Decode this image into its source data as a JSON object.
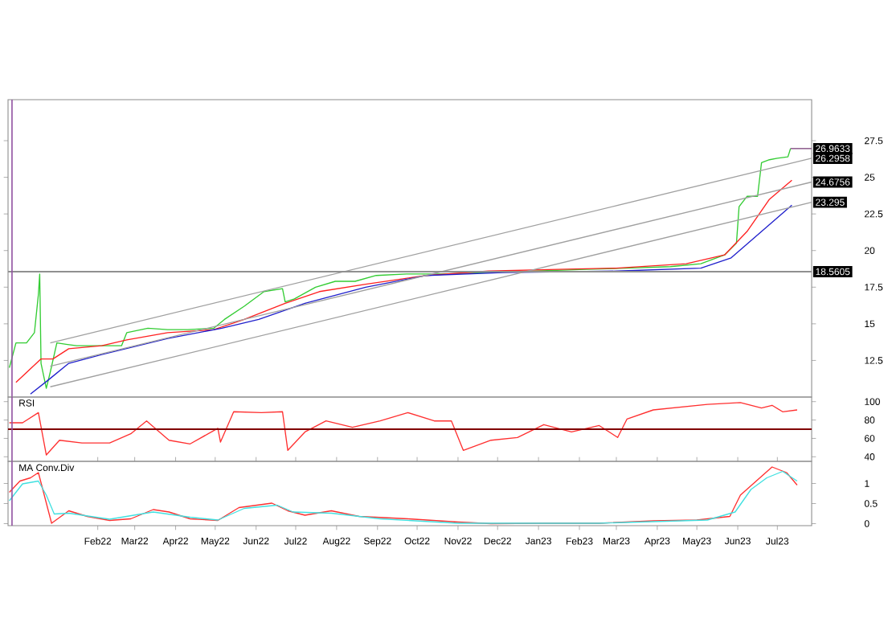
{
  "chart_data": [
    {
      "type": "line",
      "xlim": [
        "2021-11-25",
        "2023-07-27"
      ],
      "ylim": [
        10.0,
        30.3
      ],
      "yticks": [
        12.5,
        15,
        17.5,
        20,
        22.5,
        25,
        27.5
      ],
      "tick_labels": "y",
      "series": [
        {
          "color": "#33cc33",
          "x": [
            "2021-11-26",
            "2021-12-01",
            "2021-12-09",
            "2021-12-15",
            "2021-12-18",
            "2021-12-19",
            "2021-12-20",
            "2021-12-24",
            "2021-12-27",
            "2022-01-01",
            "2022-01-08",
            "2022-01-16",
            "2022-02-04",
            "2022-02-19",
            "2022-02-23",
            "2022-03-11",
            "2022-03-26",
            "2022-04-10",
            "2022-04-30",
            "2022-05-08",
            "2022-05-23",
            "2022-06-07",
            "2022-06-21",
            "2022-06-23",
            "2022-06-30",
            "2022-07-16",
            "2022-07-31",
            "2022-08-15",
            "2022-08-31",
            "2022-09-23",
            "2022-10-08",
            "2022-10-19",
            "2022-11-24",
            "2022-12-29",
            "2023-02-01",
            "2023-03-08",
            "2023-04-11",
            "2023-05-04",
            "2023-05-22",
            "2023-05-31",
            "2023-06-02",
            "2023-06-08",
            "2023-06-16",
            "2023-06-19",
            "2023-06-25",
            "2023-07-01",
            "2023-07-09",
            "2023-07-11"
          ],
          "values": [
            12.0,
            13.7,
            13.7,
            14.4,
            17.0,
            18.4,
            12.3,
            10.6,
            11.7,
            13.7,
            13.6,
            13.5,
            13.5,
            13.5,
            14.4,
            14.7,
            14.6,
            14.6,
            14.7,
            15.3,
            16.2,
            17.2,
            17.4,
            16.5,
            16.7,
            17.5,
            17.9,
            17.9,
            18.3,
            18.4,
            18.4,
            18.4,
            18.5,
            18.6,
            18.7,
            18.8,
            18.9,
            19.1,
            19.7,
            20.5,
            23.0,
            23.7,
            23.7,
            26.0,
            26.2,
            26.3,
            26.4,
            26.9633
          ]
        },
        {
          "color": "#ff2020",
          "x": [
            "2021-12-01",
            "2021-12-20",
            "2021-12-29",
            "2022-01-10",
            "2022-02-04",
            "2022-02-23",
            "2022-03-26",
            "2022-04-30",
            "2022-05-23",
            "2022-06-23",
            "2022-07-19",
            "2022-08-23",
            "2022-10-08",
            "2022-11-24",
            "2023-01-09",
            "2023-03-01",
            "2023-04-23",
            "2023-05-22",
            "2023-06-08",
            "2023-06-25",
            "2023-07-12"
          ],
          "values": [
            11.0,
            12.6,
            12.6,
            13.3,
            13.5,
            13.9,
            14.4,
            14.6,
            15.3,
            16.4,
            17.2,
            17.7,
            18.3,
            18.6,
            18.7,
            18.8,
            19.1,
            19.7,
            21.3,
            23.5,
            24.8
          ]
        },
        {
          "color": "#2020cc",
          "x": [
            "2021-12-12",
            "2021-12-26",
            "2022-01-10",
            "2022-02-04",
            "2022-03-26",
            "2022-05-06",
            "2022-06-03",
            "2022-07-08",
            "2022-08-23",
            "2022-10-08",
            "2022-12-05",
            "2023-03-01",
            "2023-05-04",
            "2023-05-27",
            "2023-06-19",
            "2023-07-12"
          ],
          "values": [
            10.2,
            11.2,
            12.3,
            12.9,
            14.0,
            14.7,
            15.3,
            16.4,
            17.5,
            18.3,
            18.5,
            18.6,
            18.8,
            19.5,
            21.3,
            23.1
          ]
        },
        {
          "color": "#a0a0a0",
          "x": [
            "2021-12-27",
            "2023-07-27"
          ],
          "values": [
            13.7,
            26.2958
          ]
        },
        {
          "color": "#a0a0a0",
          "x": [
            "2021-12-27",
            "2023-07-27"
          ],
          "values": [
            12.1,
            24.6756
          ]
        },
        {
          "color": "#a0a0a0",
          "x": [
            "2021-12-27",
            "2023-07-27"
          ],
          "values": [
            10.7,
            23.295
          ]
        }
      ],
      "ref_lines": [
        {
          "axis": "y",
          "value": 18.5605,
          "label": "18.5605",
          "color": "#909090"
        },
        {
          "axis": "x",
          "value": "2021-11-28",
          "color": "#9050a0"
        }
      ],
      "annotations": [
        {
          "text": "26.9633",
          "x": "2023-07-11",
          "y": 26.9633
        },
        {
          "text": "26.2958",
          "x": "2023-07-27",
          "y": 26.2958
        },
        {
          "text": "24.6756",
          "x": "2023-07-27",
          "y": 24.6756
        },
        {
          "text": "23.295",
          "x": "2023-07-27",
          "y": 23.295
        }
      ]
    },
    {
      "type": "line",
      "title": "RSI",
      "xlim": [
        "2021-11-25",
        "2023-07-27"
      ],
      "ylim": [
        35,
        105
      ],
      "yticks": [
        40,
        60,
        80,
        100
      ],
      "tick_labels": "y",
      "series": [
        {
          "color": "#ff3030",
          "x": [
            "2021-11-26",
            "2021-12-06",
            "2021-12-18",
            "2021-12-24",
            "2022-01-03",
            "2022-01-20",
            "2022-02-10",
            "2022-02-26",
            "2022-03-10",
            "2022-03-27",
            "2022-04-12",
            "2022-05-03",
            "2022-05-05",
            "2022-05-15",
            "2022-06-05",
            "2022-06-21",
            "2022-06-25",
            "2022-07-08",
            "2022-07-24",
            "2022-08-13",
            "2022-09-03",
            "2022-09-24",
            "2022-10-14",
            "2022-10-27",
            "2022-11-05",
            "2022-11-26",
            "2022-12-16",
            "2023-01-05",
            "2023-01-26",
            "2023-02-16",
            "2023-03-02",
            "2023-03-09",
            "2023-03-29",
            "2023-05-09",
            "2023-06-03",
            "2023-06-19",
            "2023-06-27",
            "2023-07-05",
            "2023-07-16"
          ],
          "values": [
            77,
            77,
            88,
            42,
            58,
            55,
            55,
            65,
            79,
            58,
            54,
            71,
            56,
            89,
            88,
            89,
            47,
            67,
            79,
            72,
            79,
            88,
            79,
            79,
            47,
            58,
            61,
            75,
            67,
            74,
            61,
            81,
            91,
            97,
            99,
            93,
            96,
            89,
            91
          ]
        }
      ],
      "ref_lines": [
        {
          "axis": "y",
          "value": 70,
          "color": "#800000"
        },
        {
          "axis": "x",
          "value": "2021-11-28",
          "color": "#9050a0"
        }
      ]
    },
    {
      "type": "line",
      "title": "MA Conv.Div",
      "xlim": [
        "2021-11-25",
        "2023-07-27"
      ],
      "ylim": [
        -0.05,
        1.55
      ],
      "yticks": [
        0,
        0.5,
        1
      ],
      "xticks": [
        {
          "value": "2022-02-01",
          "label": "Feb22"
        },
        {
          "value": "2022-03-01",
          "label": "Mar22"
        },
        {
          "value": "2022-04-01",
          "label": "Apr22"
        },
        {
          "value": "2022-05-01",
          "label": "May22"
        },
        {
          "value": "2022-06-01",
          "label": "Jun22"
        },
        {
          "value": "2022-07-01",
          "label": "Jul22"
        },
        {
          "value": "2022-08-01",
          "label": "Aug22"
        },
        {
          "value": "2022-09-01",
          "label": "Sep22"
        },
        {
          "value": "2022-10-01",
          "label": "Oct22"
        },
        {
          "value": "2022-11-01",
          "label": "Nov22"
        },
        {
          "value": "2022-12-01",
          "label": "Dec22"
        },
        {
          "value": "2023-01-01",
          "label": "Jan23"
        },
        {
          "value": "2023-02-01",
          "label": "Feb23"
        },
        {
          "value": "2023-03-01",
          "label": "Mar23"
        },
        {
          "value": "2023-04-01",
          "label": "Apr23"
        },
        {
          "value": "2023-05-01",
          "label": "May23"
        },
        {
          "value": "2023-06-01",
          "label": "Jun23"
        },
        {
          "value": "2023-07-01",
          "label": "Jul23"
        }
      ],
      "series": [
        {
          "color": "#ff3030",
          "x": [
            "2021-11-26",
            "2021-12-04",
            "2021-12-12",
            "2021-12-18",
            "2021-12-28",
            "2022-01-10",
            "2022-01-24",
            "2022-02-10",
            "2022-02-26",
            "2022-03-15",
            "2022-03-27",
            "2022-04-12",
            "2022-05-03",
            "2022-05-19",
            "2022-06-13",
            "2022-06-25",
            "2022-07-08",
            "2022-07-28",
            "2022-08-18",
            "2022-09-24",
            "2022-11-01",
            "2022-11-26",
            "2023-01-05",
            "2023-02-16",
            "2023-03-29",
            "2023-05-01",
            "2023-05-26",
            "2023-06-03",
            "2023-06-15",
            "2023-06-27",
            "2023-07-08",
            "2023-07-16"
          ],
          "values": [
            0.78,
            1.06,
            1.14,
            1.27,
            0.01,
            0.32,
            0.18,
            0.08,
            0.12,
            0.35,
            0.29,
            0.12,
            0.08,
            0.4,
            0.51,
            0.32,
            0.21,
            0.32,
            0.18,
            0.12,
            0.04,
            0.0,
            0.01,
            0.01,
            0.07,
            0.09,
            0.18,
            0.71,
            1.06,
            1.41,
            1.27,
            0.96
          ]
        },
        {
          "color": "#40e0e0",
          "x": [
            "2021-11-26",
            "2021-12-06",
            "2021-12-18",
            "2021-12-24",
            "2021-12-30",
            "2022-01-10",
            "2022-02-10",
            "2022-03-15",
            "2022-04-12",
            "2022-05-03",
            "2022-05-23",
            "2022-06-17",
            "2022-06-29",
            "2022-07-28",
            "2022-09-03",
            "2022-11-01",
            "2023-02-16",
            "2023-05-09",
            "2023-05-30",
            "2023-06-11",
            "2023-06-23",
            "2023-07-05",
            "2023-07-16"
          ],
          "values": [
            0.57,
            0.99,
            1.06,
            0.71,
            0.24,
            0.26,
            0.11,
            0.29,
            0.16,
            0.09,
            0.38,
            0.46,
            0.29,
            0.26,
            0.12,
            0.01,
            0.01,
            0.09,
            0.29,
            0.85,
            1.14,
            1.3,
            1.06
          ]
        }
      ],
      "ref_lines": [
        {
          "axis": "x",
          "value": "2021-11-28",
          "color": "#9050a0"
        }
      ]
    }
  ]
}
